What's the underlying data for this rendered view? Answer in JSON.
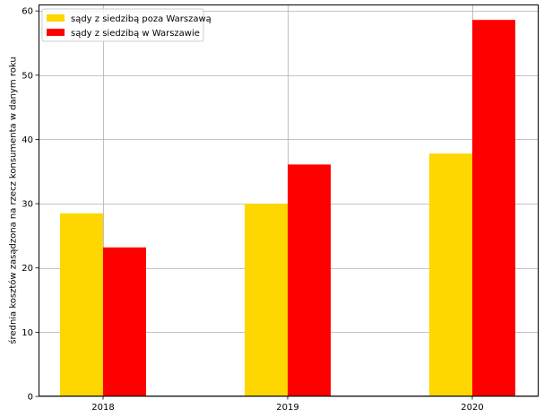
{
  "chart_data": {
    "type": "bar",
    "categories": [
      "2018",
      "2019",
      "2020"
    ],
    "series": [
      {
        "name": "sądy z siedzibą poza Warszawą",
        "color": "#FFD700",
        "values": [
          28.5,
          30.0,
          37.8
        ]
      },
      {
        "name": "sądy z siedzibą w Warszawie",
        "color": "#FF0000",
        "values": [
          23.2,
          36.1,
          58.6
        ]
      }
    ],
    "title": "",
    "xlabel": "",
    "ylabel": "średnia kosztów zasądzona na rzecz konsumenta w danym roku",
    "ylim": [
      0,
      61
    ],
    "yticks": [
      0,
      10,
      20,
      30,
      40,
      50,
      60
    ],
    "grid": true,
    "legend_position": "top-left"
  }
}
